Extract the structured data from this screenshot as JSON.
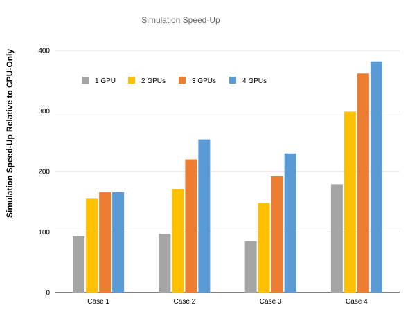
{
  "chart_data": {
    "type": "bar",
    "title": "Simulation Speed-Up",
    "xlabel": "",
    "ylabel": "Simulation Speed-Up Relative to CPU-Only",
    "categories": [
      "Case 1",
      "Case 2",
      "Case 3",
      "Case 4"
    ],
    "series": [
      {
        "name": "1 GPU",
        "color": "#a5a5a5",
        "values": [
          93,
          97,
          85,
          179
        ]
      },
      {
        "name": "2 GPUs",
        "color": "#ffc000",
        "values": [
          155,
          171,
          148,
          299
        ]
      },
      {
        "name": "3 GPUs",
        "color": "#ed7d31",
        "values": [
          166,
          220,
          192,
          362
        ]
      },
      {
        "name": "4 GPUs",
        "color": "#5b9bd5",
        "values": [
          166,
          253,
          230,
          382
        ]
      }
    ],
    "ylim": [
      0,
      400
    ],
    "yticks": [
      "0",
      "100",
      "200",
      "300",
      "400"
    ],
    "grid": true,
    "legend_position": "top-left"
  }
}
